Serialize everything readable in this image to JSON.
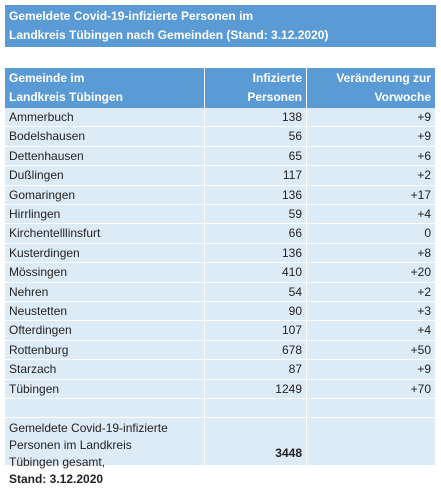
{
  "title": {
    "lines": [
      "Gemeldete Covid-19-infizierte Personen im",
      "Landkreis Tübingen nach Gemeinden (Stand: 3.12.2020)"
    ]
  },
  "table": {
    "header": [
      {
        "lines": [
          "Gemeinde im",
          "Landkreis Tübingen"
        ]
      },
      {
        "lines": [
          "Infizierte",
          "Personen"
        ]
      },
      {
        "lines": [
          "Veränderung zur",
          "Vorwoche"
        ]
      }
    ],
    "rows": [
      [
        "Ammerbuch",
        138,
        "+9"
      ],
      [
        "Bodelshausen",
        56,
        "+9"
      ],
      [
        "Dettenhausen",
        65,
        "+6"
      ],
      [
        "Dußlingen",
        117,
        "+2"
      ],
      [
        "Gomaringen",
        136,
        "+17"
      ],
      [
        "Hirrlingen",
        59,
        "+4"
      ],
      [
        "Kirchentelllinsfurt",
        66,
        0
      ],
      [
        "Kusterdingen",
        136,
        "+8"
      ],
      [
        "Mössingen",
        410,
        "+20"
      ],
      [
        "Nehren",
        54,
        "+2"
      ],
      [
        "Neustetten",
        90,
        "+3"
      ],
      [
        "Ofterdingen",
        107,
        "+4"
      ],
      [
        "Rottenburg",
        678,
        "+50"
      ],
      [
        "Starzach",
        87,
        "+9"
      ],
      [
        "Tübingen",
        1249,
        "+70"
      ]
    ],
    "total": {
      "lines": [
        "Gemeldete Covid-19-infizierte",
        "Personen im Landkreis",
        "Tübingen gesamt,",
        "Stand: 3.12.2020"
      ],
      "value": 3448
    }
  }
}
